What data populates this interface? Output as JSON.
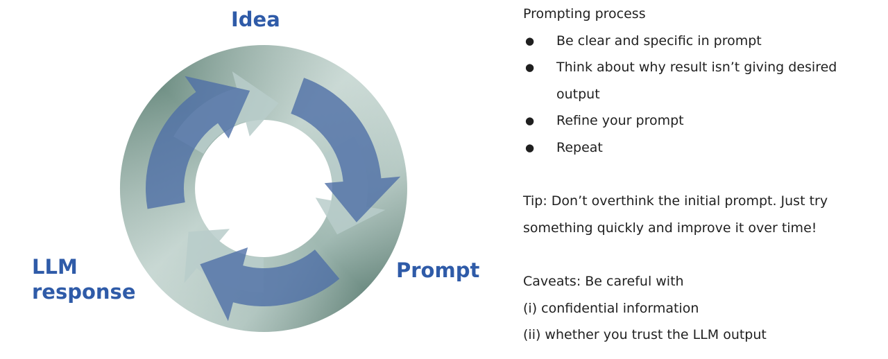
{
  "diagram": {
    "stages": [
      {
        "label": "Idea",
        "lines": [
          "Idea"
        ]
      },
      {
        "label": "Prompt",
        "lines": [
          "Prompt"
        ]
      },
      {
        "label": "LLM response",
        "lines": [
          "LLM",
          "response"
        ]
      }
    ],
    "colors": {
      "ring_dark": "#5f8175",
      "ring_light": "#cfdcd8",
      "arrow_blue": "#4f6fa6",
      "arrow_pale": "#b9cdca",
      "label_blue": "#2f5ba8"
    }
  },
  "panel": {
    "heading": "Prompting process",
    "bullets": [
      {
        "lines": [
          "Be clear and specific in prompt"
        ]
      },
      {
        "lines": [
          "Think about why result isn’t giving desired",
          "output"
        ]
      },
      {
        "lines": [
          "Refine your prompt"
        ]
      },
      {
        "lines": [
          "Repeat"
        ]
      }
    ],
    "tip": [
      "Tip: Don’t overthink the initial prompt. Just try",
      "something quickly and improve it over time!"
    ],
    "caveats": [
      "Caveats: Be careful with",
      "(i) confidential information",
      "(ii) whether you trust the LLM output"
    ]
  }
}
